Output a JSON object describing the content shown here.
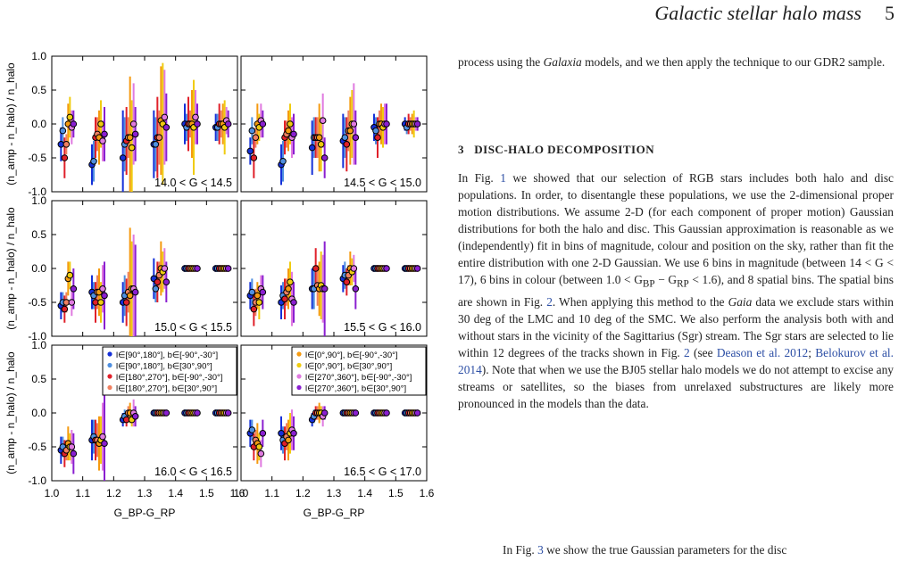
{
  "header": {
    "title": "Galactic stellar halo mass",
    "page": "5"
  },
  "paragraph1": {
    "a": "process using the ",
    "b": "Galaxia",
    "c": " models, and we then apply the technique to our GDR2 sample."
  },
  "section": {
    "number": "3",
    "title": "DISC-HALO DECOMPOSITION"
  },
  "paragraph2": {
    "s1": "In Fig. ",
    "r1": "1",
    "s2": " we showed that our selection of RGB stars includes both halo and disc populations. In order, to disentangle these populations, we use the 2-dimensional proper motion distributions. We assume 2-D (for each component of proper motion) Gaussian distributions for both the halo and disc. This Gaussian approximation is reasonable as we (independently) fit in bins of magnitude, colour and position on the sky, rather than fit the entire distribution with one 2-D Gaussian. We use 6 bins in magnitude (between 14 < G < 17), 6 bins in colour (between 1.0 < G",
    "s3": "BP",
    "s4": " − G",
    "s5": "RP",
    "s6": " < 1.6), and 8 spatial bins. The spatial bins are shown in Fig. ",
    "r2": "2",
    "s7": ". When applying this method to the ",
    "s8": "Gaia",
    "s9": " data we exclude stars within 30 deg of the LMC and 10 deg of the SMC. We also perform the analysis both with and without stars in the vicinity of the Sagittarius (Sgr) stream. The Sgr stars are selected to lie within 12 degrees of the tracks shown in Fig. ",
    "r3": "2",
    "s10": " (see ",
    "r4": "Deason et al. 2012",
    "s11": "; ",
    "r5": "Belokurov et al. 2014",
    "s12": "). Note that when we use the BJ05 stellar halo models we do not attempt to excise any streams or satellites, so the biases from unrelaxed substructures are likely more pronounced in the models than the data."
  },
  "paragraph3": {
    "a": "In Fig. ",
    "r": "3",
    "b": " we show the true Gaussian parameters for the disc"
  },
  "chart_data": {
    "type": "scatter",
    "panel_labels": [
      "14.0 < G < 14.5",
      "14.5 < G < 15.0",
      "15.0 < G < 15.5",
      "15.5 < G < 16.0",
      "16.0 < G < 16.5",
      "16.5 < G < 17.0"
    ],
    "ylabel": "(n_amp - n_halo) / n_halo",
    "xlabel": "G_BP-G_RP",
    "xlim": [
      1.0,
      1.6
    ],
    "ylim": [
      -1.0,
      1.0
    ],
    "xticks": [
      "1.0",
      "1.1",
      "1.2",
      "1.3",
      "1.4",
      "1.5",
      "1.6"
    ],
    "xticks_left": [
      "1.0",
      "1.1",
      "1.2",
      "1.3",
      "1.4",
      "1.5",
      "1.6"
    ],
    "xticks_right": [
      "1.0",
      "1.1",
      "1.2",
      "1.3",
      "1.4",
      "1.5",
      "1.6"
    ],
    "yticks": [
      "-1.0",
      "-0.5",
      "0.0",
      "0.5",
      "1.0"
    ],
    "x_centers": [
      1.05,
      1.15,
      1.25,
      1.35,
      1.45,
      1.55
    ],
    "legend_left": [
      {
        "label": "l∈[90°,180°], b∈[-90°,-30°]",
        "color": "#1530d8"
      },
      {
        "label": "l∈[90°,180°], b∈[30°,90°]",
        "color": "#4f8fe0"
      },
      {
        "label": "l∈[180°,270°], b∈[-90°,-30°]",
        "color": "#e0202a"
      },
      {
        "label": "l∈[180°,270°], b∈[30°,90°]",
        "color": "#f08060"
      }
    ],
    "legend_right": [
      {
        "label": "l∈[0°,90°], b∈[-90°,-30°]",
        "color": "#f59a10"
      },
      {
        "label": "l∈[0°,90°], b∈[30°,90°]",
        "color": "#f0cc10"
      },
      {
        "label": "l∈[270°,360°], b∈[-90°,-30°]",
        "color": "#e07ae0"
      },
      {
        "label": "l∈[270°,360°], b∈[30°,90°]",
        "color": "#8a1fd0"
      }
    ],
    "panels": [
      {
        "values": [
          [
            -0.3,
            -0.1,
            -0.5,
            -0.3,
            0.0,
            0.1,
            -0.05,
            0.0
          ],
          [
            -0.6,
            -0.55,
            -0.2,
            -0.15,
            -0.2,
            0.0,
            -0.25,
            -0.15
          ],
          [
            -0.5,
            -0.3,
            -0.25,
            -0.2,
            -0.2,
            -0.35,
            0.0,
            -0.15
          ],
          [
            -0.3,
            -0.3,
            -0.2,
            -0.2,
            0.05,
            0.0,
            0.1,
            -0.05
          ],
          [
            0.0,
            -0.05,
            0.0,
            0.0,
            0.0,
            -0.05,
            0.1,
            0.0
          ],
          [
            -0.05,
            -0.05,
            0.0,
            0.0,
            0.0,
            -0.05,
            0.05,
            0.0
          ]
        ],
        "errors": [
          [
            0.25,
            0.2,
            0.3,
            0.15,
            0.3,
            0.3,
            0.25,
            0.2
          ],
          [
            0.3,
            0.3,
            0.3,
            0.25,
            0.4,
            0.35,
            0.3,
            0.4
          ],
          [
            0.7,
            0.4,
            0.5,
            0.3,
            0.9,
            0.7,
            0.6,
            0.4
          ],
          [
            0.5,
            0.4,
            0.6,
            0.4,
            0.8,
            0.9,
            0.7,
            0.5
          ],
          [
            0.3,
            0.2,
            0.4,
            0.2,
            0.5,
            0.7,
            0.4,
            0.3
          ],
          [
            0.2,
            0.2,
            0.3,
            0.2,
            0.3,
            0.4,
            0.2,
            0.2
          ]
        ]
      },
      {
        "values": [
          [
            -0.4,
            -0.1,
            -0.5,
            -0.2,
            0.0,
            -0.05,
            0.05,
            0.0
          ],
          [
            -0.6,
            -0.55,
            -0.2,
            -0.15,
            -0.1,
            0.0,
            -0.2,
            -0.15
          ],
          [
            -0.35,
            -0.2,
            -0.2,
            -0.2,
            -0.2,
            -0.3,
            0.05,
            -0.5
          ],
          [
            -0.25,
            -0.2,
            -0.3,
            -0.1,
            -0.1,
            0.0,
            0.0,
            -0.2
          ],
          [
            -0.05,
            -0.1,
            -0.2,
            0.0,
            0.0,
            -0.05,
            0.0,
            0.0
          ],
          [
            0.0,
            -0.05,
            0.0,
            0.0,
            0.0,
            0.0,
            0.0,
            0.0
          ]
        ],
        "errors": [
          [
            0.2,
            0.2,
            0.3,
            0.15,
            0.3,
            0.2,
            0.25,
            0.2
          ],
          [
            0.3,
            0.3,
            0.25,
            0.2,
            0.3,
            0.3,
            0.3,
            0.3
          ],
          [
            0.4,
            0.3,
            0.3,
            0.3,
            0.5,
            0.4,
            0.4,
            0.3
          ],
          [
            0.4,
            0.3,
            0.4,
            0.3,
            0.5,
            0.5,
            0.6,
            0.4
          ],
          [
            0.2,
            0.2,
            0.3,
            0.2,
            0.3,
            0.3,
            0.3,
            0.3
          ],
          [
            0.1,
            0.1,
            0.15,
            0.1,
            0.15,
            0.2,
            0.1,
            0.1
          ]
        ]
      },
      {
        "values": [
          [
            -0.55,
            -0.5,
            -0.6,
            -0.5,
            -0.15,
            -0.1,
            -0.5,
            -0.3
          ],
          [
            -0.35,
            -0.4,
            -0.5,
            -0.35,
            -0.35,
            -0.5,
            -0.3,
            -0.4
          ],
          [
            -0.5,
            -0.4,
            -0.5,
            -0.35,
            -0.4,
            -0.3,
            -0.3,
            -0.35
          ],
          [
            -0.15,
            -0.3,
            -0.2,
            -0.1,
            0.0,
            -0.05,
            0.0,
            -0.2
          ],
          [
            0.0,
            0.0,
            0.0,
            0.0,
            0.0,
            0.0,
            0.0,
            0.0
          ],
          [
            0.0,
            0.0,
            0.0,
            0.0,
            0.0,
            0.0,
            0.0,
            0.0
          ]
        ],
        "errors": [
          [
            0.2,
            0.15,
            0.2,
            0.15,
            0.25,
            0.2,
            0.2,
            0.3
          ],
          [
            0.25,
            0.2,
            0.3,
            0.25,
            0.35,
            0.3,
            0.35,
            0.5
          ],
          [
            0.3,
            0.3,
            0.35,
            0.3,
            1.0,
            0.7,
            0.8,
            0.7
          ],
          [
            0.3,
            0.2,
            0.3,
            0.2,
            0.4,
            0.3,
            0.3,
            0.3
          ],
          [
            0.05,
            0.05,
            0.05,
            0.05,
            0.05,
            0.05,
            0.05,
            0.05
          ],
          [
            0.05,
            0.05,
            0.05,
            0.05,
            0.05,
            0.05,
            0.05,
            0.05
          ]
        ]
      },
      {
        "values": [
          [
            -0.4,
            -0.35,
            -0.6,
            -0.5,
            -0.4,
            -0.5,
            -0.3,
            -0.35
          ],
          [
            -0.5,
            -0.4,
            -0.45,
            -0.35,
            -0.3,
            -0.2,
            -0.45,
            -0.5
          ],
          [
            -0.3,
            -0.3,
            0.0,
            -0.25,
            -0.3,
            -0.25,
            -0.3,
            -0.3
          ],
          [
            -0.15,
            -0.1,
            -0.2,
            -0.1,
            0.0,
            -0.05,
            0.0,
            -0.3
          ],
          [
            0.0,
            0.0,
            0.0,
            0.0,
            0.0,
            0.0,
            0.0,
            0.0
          ],
          [
            0.0,
            0.0,
            0.0,
            0.0,
            0.0,
            0.0,
            0.0,
            0.0
          ]
        ],
        "errors": [
          [
            0.2,
            0.2,
            0.25,
            0.2,
            0.2,
            0.25,
            0.2,
            0.25
          ],
          [
            0.25,
            0.2,
            0.3,
            0.2,
            0.3,
            0.3,
            0.4,
            0.3
          ],
          [
            0.3,
            0.3,
            0.3,
            0.3,
            0.4,
            0.5,
            0.5,
            0.7
          ],
          [
            0.2,
            0.2,
            0.2,
            0.15,
            0.25,
            0.2,
            0.2,
            0.3
          ],
          [
            0.05,
            0.05,
            0.05,
            0.05,
            0.05,
            0.05,
            0.05,
            0.05
          ],
          [
            0.05,
            0.05,
            0.05,
            0.05,
            0.05,
            0.05,
            0.05,
            0.05
          ]
        ]
      },
      {
        "values": [
          [
            -0.55,
            -0.5,
            -0.6,
            -0.55,
            -0.45,
            -0.5,
            -0.5,
            -0.6
          ],
          [
            -0.4,
            -0.35,
            -0.4,
            -0.4,
            -0.45,
            -0.4,
            -0.35,
            -0.45
          ],
          [
            -0.1,
            -0.05,
            -0.1,
            0.0,
            0.0,
            -0.1,
            0.0,
            -0.05
          ],
          [
            0.0,
            0.0,
            0.0,
            0.0,
            0.0,
            0.0,
            0.0,
            0.0
          ],
          [
            0.0,
            0.0,
            0.0,
            0.0,
            0.0,
            0.0,
            0.0,
            0.0
          ],
          [
            0.0,
            0.0,
            0.0,
            0.0,
            0.0,
            0.0,
            0.0,
            0.0
          ]
        ],
        "errors": [
          [
            0.2,
            0.15,
            0.2,
            0.15,
            0.25,
            0.2,
            0.25,
            0.3
          ],
          [
            0.3,
            0.25,
            0.3,
            0.25,
            0.4,
            0.35,
            0.5,
            0.8
          ],
          [
            0.1,
            0.1,
            0.1,
            0.1,
            0.15,
            0.1,
            0.2,
            0.15
          ],
          [
            0.05,
            0.05,
            0.05,
            0.05,
            0.05,
            0.05,
            0.05,
            0.05
          ],
          [
            0.05,
            0.05,
            0.05,
            0.05,
            0.05,
            0.05,
            0.05,
            0.05
          ],
          [
            0.05,
            0.05,
            0.05,
            0.05,
            0.05,
            0.05,
            0.05,
            0.05
          ]
        ]
      },
      {
        "values": [
          [
            -0.3,
            -0.25,
            -0.5,
            -0.4,
            -0.45,
            -0.5,
            -0.6,
            -0.3
          ],
          [
            -0.3,
            -0.4,
            -0.45,
            -0.35,
            -0.4,
            -0.3,
            -0.25,
            -0.3
          ],
          [
            -0.1,
            -0.05,
            0.0,
            0.0,
            0.0,
            0.0,
            -0.05,
            0.0
          ],
          [
            0.0,
            0.0,
            0.0,
            0.0,
            0.0,
            0.0,
            0.0,
            0.0
          ],
          [
            0.0,
            0.0,
            0.0,
            0.0,
            0.0,
            0.0,
            0.0,
            0.0
          ],
          [
            0.0,
            0.0,
            0.0,
            0.0,
            0.0,
            0.0,
            0.0,
            0.0
          ]
        ],
        "errors": [
          [
            0.2,
            0.15,
            0.2,
            0.15,
            0.3,
            0.2,
            0.2,
            0.2
          ],
          [
            0.25,
            0.2,
            0.25,
            0.2,
            0.3,
            0.3,
            0.3,
            0.25
          ],
          [
            0.1,
            0.1,
            0.1,
            0.1,
            0.15,
            0.1,
            0.15,
            0.1
          ],
          [
            0.05,
            0.05,
            0.05,
            0.05,
            0.05,
            0.05,
            0.05,
            0.05
          ],
          [
            0.05,
            0.05,
            0.05,
            0.05,
            0.05,
            0.05,
            0.05,
            0.05
          ],
          [
            0.05,
            0.05,
            0.05,
            0.05,
            0.05,
            0.05,
            0.05,
            0.05
          ]
        ]
      }
    ]
  }
}
